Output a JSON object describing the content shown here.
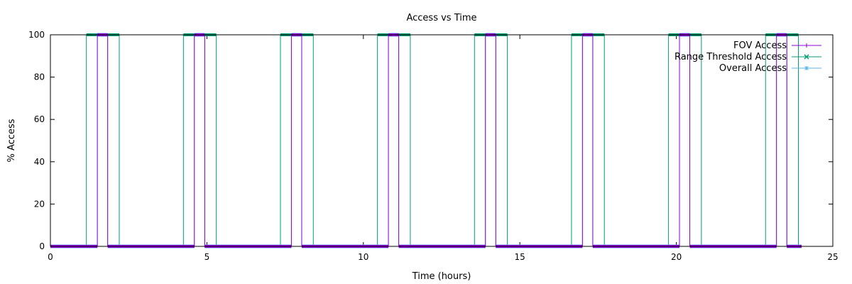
{
  "chart_data": {
    "type": "line",
    "title": "Access vs Time",
    "xlabel": "Time (hours)",
    "ylabel": "% Access",
    "xlim": [
      0,
      25
    ],
    "ylim": [
      0,
      100
    ],
    "xticks": [
      0,
      5,
      10,
      15,
      20,
      25
    ],
    "yticks": [
      0,
      20,
      40,
      60,
      80,
      100
    ],
    "grid": false,
    "legend_position": "top-right",
    "series": [
      {
        "name": "FOV Access",
        "color": "#9400d3",
        "marker": "plus",
        "intervals": [
          [
            1.5,
            1.83
          ],
          [
            4.6,
            4.93
          ],
          [
            7.7,
            8.03
          ],
          [
            10.8,
            11.13
          ],
          [
            13.9,
            14.23
          ],
          [
            17.0,
            17.33
          ],
          [
            20.1,
            20.43
          ],
          [
            23.2,
            23.53
          ]
        ]
      },
      {
        "name": "Range Threshold Access",
        "color": "#009e73",
        "marker": "cross",
        "intervals": [
          [
            1.15,
            2.2
          ],
          [
            4.25,
            5.3
          ],
          [
            7.35,
            8.4
          ],
          [
            10.45,
            11.5
          ],
          [
            13.55,
            14.6
          ],
          [
            16.65,
            17.7
          ],
          [
            19.75,
            20.8
          ],
          [
            22.85,
            23.9
          ]
        ]
      },
      {
        "name": "Overall Access",
        "color": "#56b4e9",
        "marker": "star",
        "intervals": [
          [
            1.5,
            1.83
          ],
          [
            4.6,
            4.93
          ],
          [
            7.7,
            8.03
          ],
          [
            10.8,
            11.13
          ],
          [
            13.9,
            14.23
          ],
          [
            17.0,
            17.33
          ],
          [
            20.1,
            20.43
          ],
          [
            23.2,
            23.53
          ]
        ]
      }
    ],
    "x_end": 24
  }
}
